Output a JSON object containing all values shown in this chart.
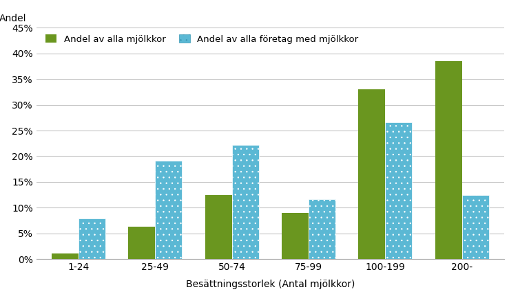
{
  "categories": [
    "1-24",
    "25-49",
    "50-74",
    "75-99",
    "100-199",
    "200-"
  ],
  "series1_values": [
    1.1,
    6.3,
    12.5,
    9.0,
    33.0,
    38.5
  ],
  "series2_values": [
    7.9,
    19.1,
    22.2,
    11.6,
    26.6,
    12.5
  ],
  "series1_label": "Andel av alla mjölkkor",
  "series2_label": "Andel av alla företag med mjölkkor",
  "ylabel_text": "Andel",
  "xlabel": "Besättningsstorlek (Antal mjölkkor)",
  "yticks": [
    0,
    5,
    10,
    15,
    20,
    25,
    30,
    35,
    40,
    45
  ],
  "ylim": [
    0,
    45
  ],
  "bar_color1": "#6a961f",
  "bar_color2": "#5bb8d4",
  "background_color": "#ffffff",
  "grid_color": "#c8c8c8",
  "bar_width": 0.35
}
